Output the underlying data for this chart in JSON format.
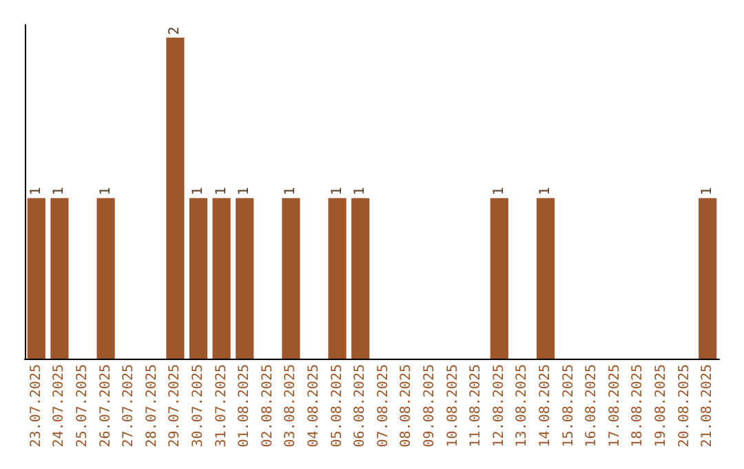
{
  "chart_data": {
    "type": "bar",
    "categories": [
      "23.07.2025",
      "24.07.2025",
      "25.07.2025",
      "26.07.2025",
      "27.07.2025",
      "28.07.2025",
      "29.07.2025",
      "30.07.2025",
      "31.07.2025",
      "01.08.2025",
      "02.08.2025",
      "03.08.2025",
      "04.08.2025",
      "05.08.2025",
      "06.08.2025",
      "07.08.2025",
      "08.08.2025",
      "09.08.2025",
      "10.08.2025",
      "11.08.2025",
      "12.08.2025",
      "13.08.2025",
      "14.08.2025",
      "15.08.2025",
      "16.08.2025",
      "17.08.2025",
      "18.08.2025",
      "19.08.2025",
      "20.08.2025",
      "21.08.2025"
    ],
    "values": [
      1,
      1,
      0,
      1,
      0,
      0,
      2,
      1,
      1,
      1,
      0,
      1,
      0,
      1,
      1,
      0,
      0,
      0,
      0,
      0,
      1,
      0,
      1,
      0,
      0,
      0,
      0,
      0,
      0,
      1
    ],
    "value_labels": [
      "1",
      "1",
      null,
      "1",
      null,
      null,
      "2",
      "1",
      "1",
      "1",
      null,
      "1",
      null,
      "1",
      "1",
      null,
      null,
      null,
      null,
      null,
      "1",
      null,
      "1",
      null,
      null,
      null,
      null,
      null,
      null,
      "1"
    ],
    "color": "#a0582a"
  }
}
